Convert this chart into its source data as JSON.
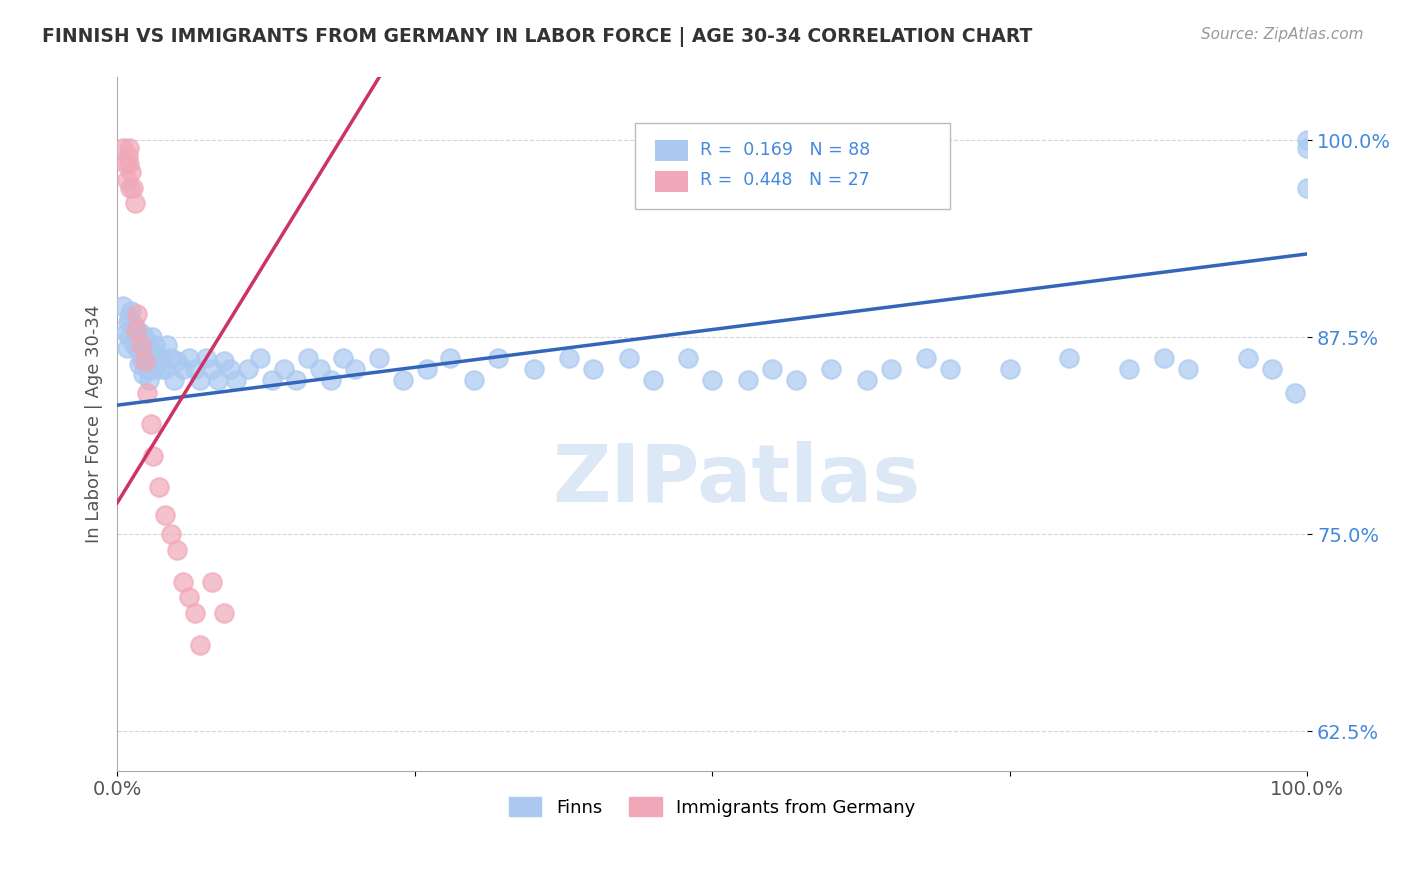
{
  "title": "FINNISH VS IMMIGRANTS FROM GERMANY IN LABOR FORCE | AGE 30-34 CORRELATION CHART",
  "source": "Source: ZipAtlas.com",
  "ylabel": "In Labor Force | Age 30-34",
  "xlim": [
    0.0,
    1.0
  ],
  "ylim": [
    0.6,
    1.04
  ],
  "x_ticks": [
    0.0,
    0.25,
    0.5,
    0.75,
    1.0
  ],
  "x_tick_labels": [
    "0.0%",
    "",
    "",
    "",
    "100.0%"
  ],
  "y_ticks": [
    0.625,
    0.75,
    0.875,
    1.0
  ],
  "y_tick_labels": [
    "62.5%",
    "75.0%",
    "87.5%",
    "100.0%"
  ],
  "r_finns": 0.169,
  "n_finns": 88,
  "r_germany": 0.448,
  "n_germany": 27,
  "finns_color": "#aac8f0",
  "germany_color": "#f0a8b8",
  "finns_line_color": "#3366bb",
  "germany_line_color": "#cc3366",
  "watermark_color": "#dce8f5",
  "background_color": "#ffffff",
  "finns_line_x0": 0.0,
  "finns_line_y0": 0.832,
  "finns_line_x1": 1.0,
  "finns_line_y1": 0.928,
  "germany_line_x0": 0.0,
  "germany_line_y0": 0.77,
  "germany_line_x1": 0.22,
  "germany_line_y1": 1.04,
  "finns_x": [
    0.005,
    0.007,
    0.008,
    0.009,
    0.01,
    0.01,
    0.012,
    0.013,
    0.014,
    0.015,
    0.016,
    0.017,
    0.018,
    0.019,
    0.02,
    0.02,
    0.021,
    0.022,
    0.023,
    0.024,
    0.025,
    0.026,
    0.027,
    0.028,
    0.029,
    0.03,
    0.031,
    0.032,
    0.034,
    0.036,
    0.038,
    0.04,
    0.042,
    0.045,
    0.048,
    0.05,
    0.055,
    0.06,
    0.065,
    0.07,
    0.075,
    0.08,
    0.085,
    0.09,
    0.095,
    0.1,
    0.11,
    0.12,
    0.13,
    0.14,
    0.15,
    0.16,
    0.17,
    0.18,
    0.19,
    0.2,
    0.22,
    0.24,
    0.26,
    0.28,
    0.3,
    0.32,
    0.35,
    0.38,
    0.4,
    0.43,
    0.45,
    0.48,
    0.5,
    0.53,
    0.55,
    0.57,
    0.6,
    0.63,
    0.65,
    0.68,
    0.7,
    0.75,
    0.8,
    0.85,
    0.88,
    0.9,
    0.95,
    0.97,
    0.99,
    1.0,
    1.0,
    1.0
  ],
  "finns_y": [
    0.895,
    0.878,
    0.868,
    0.885,
    0.875,
    0.888,
    0.892,
    0.88,
    0.87,
    0.882,
    0.875,
    0.868,
    0.858,
    0.872,
    0.865,
    0.878,
    0.86,
    0.852,
    0.875,
    0.862,
    0.855,
    0.87,
    0.848,
    0.862,
    0.875,
    0.865,
    0.855,
    0.87,
    0.862,
    0.855,
    0.862,
    0.855,
    0.87,
    0.862,
    0.848,
    0.86,
    0.855,
    0.862,
    0.855,
    0.848,
    0.862,
    0.855,
    0.848,
    0.86,
    0.855,
    0.848,
    0.855,
    0.862,
    0.848,
    0.855,
    0.848,
    0.862,
    0.855,
    0.848,
    0.862,
    0.855,
    0.862,
    0.848,
    0.855,
    0.862,
    0.848,
    0.862,
    0.855,
    0.862,
    0.855,
    0.862,
    0.848,
    0.862,
    0.848,
    0.848,
    0.855,
    0.848,
    0.855,
    0.848,
    0.855,
    0.862,
    0.855,
    0.855,
    0.862,
    0.855,
    0.862,
    0.855,
    0.862,
    0.855,
    0.84,
    0.97,
    0.995,
    1.0
  ],
  "germany_x": [
    0.005,
    0.007,
    0.008,
    0.009,
    0.01,
    0.01,
    0.011,
    0.012,
    0.013,
    0.015,
    0.016,
    0.017,
    0.02,
    0.023,
    0.025,
    0.028,
    0.03,
    0.035,
    0.04,
    0.045,
    0.05,
    0.055,
    0.06,
    0.065,
    0.07,
    0.08,
    0.09
  ],
  "germany_y": [
    0.995,
    0.985,
    0.975,
    0.99,
    0.985,
    0.995,
    0.97,
    0.98,
    0.97,
    0.96,
    0.88,
    0.89,
    0.87,
    0.86,
    0.84,
    0.82,
    0.8,
    0.78,
    0.762,
    0.75,
    0.74,
    0.72,
    0.71,
    0.7,
    0.68,
    0.72,
    0.7
  ]
}
